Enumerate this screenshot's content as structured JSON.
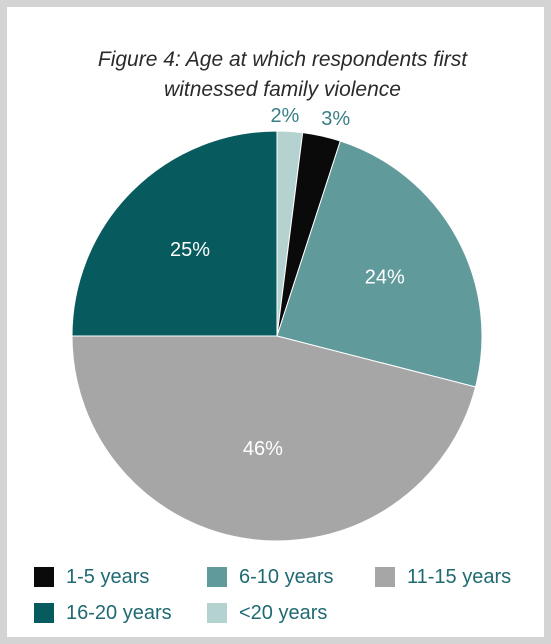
{
  "chart_data": {
    "type": "pie",
    "title_line1": "Figure 4: Age at which respondents first",
    "title_line2": "witnessed family violence",
    "slices": [
      {
        "label": "<20 years",
        "value": 2,
        "value_label": "2%",
        "color": "#b4d3d0",
        "label_color": "#3a7f86"
      },
      {
        "label": "1-5 years",
        "value": 3,
        "value_label": "3%",
        "color": "#0a0a0a",
        "label_color": "#3a7f86"
      },
      {
        "label": "6-10 years",
        "value": 24,
        "value_label": "24%",
        "color": "#619a9a",
        "label_color": "#ffffff"
      },
      {
        "label": "11-15 years",
        "value": 46,
        "value_label": "46%",
        "color": "#a6a6a6",
        "label_color": "#ffffff"
      },
      {
        "label": "16-20 years",
        "value": 25,
        "value_label": "25%",
        "color": "#075a5e",
        "label_color": "#ffffff"
      }
    ],
    "legend": [
      {
        "label": "1-5 years",
        "color": "#0a0a0a"
      },
      {
        "label": "6-10 years",
        "color": "#619a9a"
      },
      {
        "label": "11-15 years",
        "color": "#a6a6a6"
      },
      {
        "label": "16-20 years",
        "color": "#075a5e"
      },
      {
        "label": "<20 years",
        "color": "#b4d3d0"
      }
    ]
  }
}
